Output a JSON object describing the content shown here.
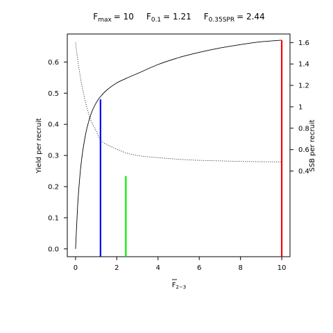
{
  "chart_data": {
    "type": "line",
    "title_parts": [
      {
        "main": "F",
        "sub": "max",
        "value": "= 10"
      },
      {
        "main": "F",
        "sub": "0.1",
        "value": "= 1.21"
      },
      {
        "main": "F",
        "sub": "0.35SPR",
        "value": "= 2.44"
      }
    ],
    "xlabel": {
      "main": "F",
      "sub": "2−3",
      "overline": true
    },
    "ylabel_left": "Yield per recruit",
    "ylabel_right": "SSB per recruit",
    "xlim": [
      -0.4,
      10.4
    ],
    "ylim_left": [
      -0.025,
      0.69
    ],
    "ylim_right": [
      -0.4,
      1.68
    ],
    "x_ticks": [
      0,
      2,
      4,
      6,
      8,
      10
    ],
    "y_ticks_left": [
      0.0,
      0.1,
      0.2,
      0.3,
      0.4,
      0.5,
      0.6
    ],
    "y_ticks_right": [
      0.4,
      0.6,
      0.8,
      1.0,
      1.2,
      1.4,
      1.6
    ],
    "y_tick_labels_left": [
      "0.0",
      "0.1",
      "0.2",
      "0.3",
      "0.4",
      "0.5",
      "0.6"
    ],
    "y_tick_labels_right": [
      "0.4",
      "0.6",
      "0.8",
      "1",
      "1.2",
      "1.4",
      "1.6"
    ],
    "series": [
      {
        "name": "Yield per recruit",
        "axis": "left",
        "style": "solid",
        "color": "#000000",
        "x": [
          0,
          0.1,
          0.2,
          0.3,
          0.5,
          0.75,
          1.0,
          1.21,
          1.5,
          2.0,
          2.44,
          3.0,
          4.0,
          5.0,
          6.0,
          7.0,
          8.0,
          9.0,
          10.0
        ],
        "y": [
          0.0,
          0.136,
          0.226,
          0.29,
          0.372,
          0.433,
          0.469,
          0.489,
          0.509,
          0.533,
          0.547,
          0.563,
          0.592,
          0.614,
          0.631,
          0.645,
          0.656,
          0.665,
          0.67
        ]
      },
      {
        "name": "SSB per recruit",
        "axis": "right",
        "style": "dotted",
        "color": "#000000",
        "x": [
          0,
          0.1,
          0.2,
          0.3,
          0.5,
          0.75,
          1.0,
          1.21,
          1.5,
          2.0,
          2.44,
          3.0,
          4.0,
          5.0,
          6.0,
          7.0,
          8.0,
          9.0,
          10.0
        ],
        "y": [
          1.6,
          1.445,
          1.318,
          1.207,
          1.03,
          0.87,
          0.775,
          0.69,
          0.65,
          0.605,
          0.57,
          0.545,
          0.525,
          0.51,
          0.5,
          0.495,
          0.49,
          0.487,
          0.485
        ]
      }
    ],
    "reference_lines": [
      {
        "label": "F0.1",
        "x": 1.21,
        "y_top": 0.48,
        "color": "#0000ff"
      },
      {
        "label": "F0.35SPR",
        "x": 2.44,
        "y_top": 0.234,
        "color": "#00ee00"
      },
      {
        "label": "Fmax",
        "x": 10.0,
        "y_top": 0.67,
        "color": "#ff0000"
      }
    ],
    "grid": false,
    "legend": "none"
  }
}
